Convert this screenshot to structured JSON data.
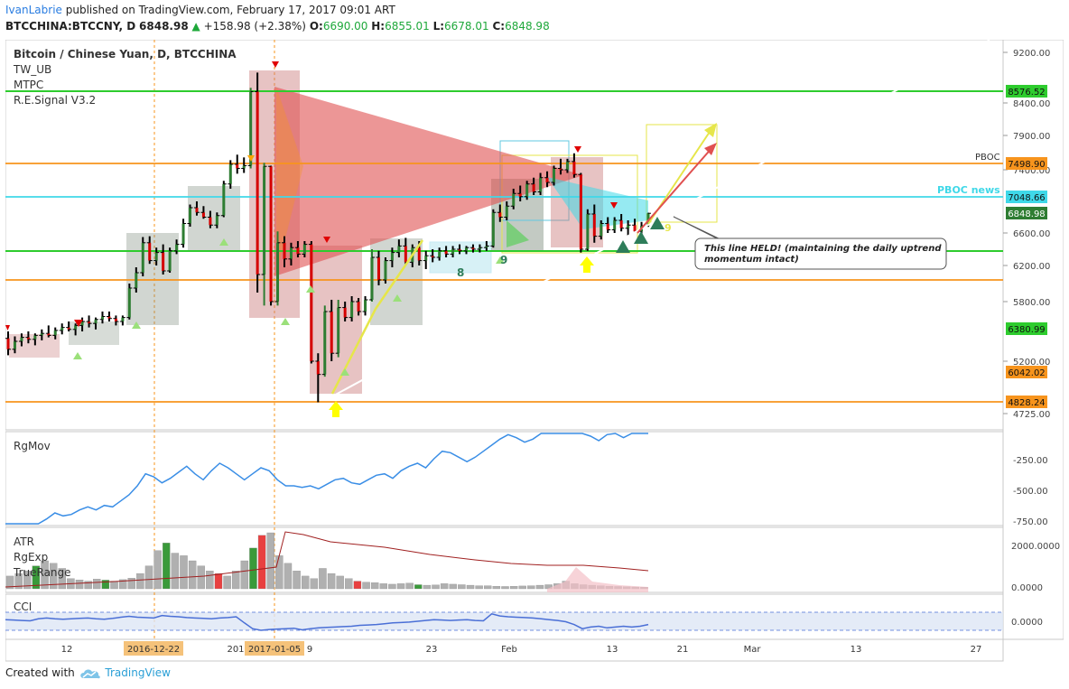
{
  "header": {
    "author": "IvanLabrie",
    "published_text": "published on TradingView.com, February 17, 2017 09:01 ART",
    "symbol": "BTCCHINA:BTCCNY, D",
    "price": "6848.98",
    "change": "+158.98 (+2.38%)",
    "o_label": "O:",
    "o_value": "6690.00",
    "h_label": "H:",
    "h_value": "6855.01",
    "l_label": "L:",
    "l_value": "6678.01",
    "c_label": "C:",
    "c_value": "6848.98"
  },
  "legend": {
    "title": "Bitcoin / Chinese Yuan, D, BTCCHINA",
    "items": [
      "TW_UB",
      "MTPC",
      "R.E.Signal V3.2"
    ]
  },
  "annotation": {
    "line1": "This line HELD! (maintaining the daily uptrend",
    "line2": "momentum intact)"
  },
  "labels": {
    "pboc": "PBOC",
    "pboc_news": "PBOC news",
    "wave8": "8",
    "wave9a": "9",
    "wave9b": "9"
  },
  "colors": {
    "green_line": "#2ecc2e",
    "orange_line": "#f7941d",
    "cyan_line": "#3fd8e8",
    "red_tri": "#e05050",
    "bull": "#2e7d32",
    "bear": "#d50000",
    "rgmov": "#3a8ee6",
    "cci": "#4a6fd6"
  },
  "chart_data": [
    {
      "type": "candlestick",
      "title": "Bitcoin / Chinese Yuan, D, BTCCHINA",
      "y_ticks": [
        "9200.00",
        "8400.00",
        "7900.00",
        "7400.00",
        "6600.00",
        "6200.00",
        "5800.00",
        "5200.00",
        "4725.00"
      ],
      "x_ticks": [
        "12",
        "2016-12-22",
        "201",
        "2017-01-05",
        "9",
        "23",
        "Feb",
        "13",
        "21",
        "Mar",
        "13",
        "27"
      ],
      "price_labels": [
        "8576.52",
        "7498.90",
        "7048.66",
        "6848.98",
        "6380.99",
        "6042.02",
        "4828.24"
      ],
      "horizontal_lines": [
        {
          "price": "8576.52",
          "color": "#2ecc2e"
        },
        {
          "price": "7498.90",
          "color": "#f7941d",
          "label": "PBOC"
        },
        {
          "price": "7048.66",
          "color": "#3fd8e8",
          "label": "PBOC news"
        },
        {
          "price": "6380.99",
          "color": "#2ecc2e"
        },
        {
          "price": "6042.02",
          "color": "#f7941d"
        },
        {
          "price": "4828.24",
          "color": "#f7941d"
        }
      ],
      "candles": [
        {
          "o": 5430,
          "h": 5500,
          "l": 5260,
          "c": 5320
        },
        {
          "o": 5320,
          "h": 5450,
          "l": 5280,
          "c": 5400
        },
        {
          "o": 5400,
          "h": 5480,
          "l": 5350,
          "c": 5440
        },
        {
          "o": 5440,
          "h": 5500,
          "l": 5380,
          "c": 5420
        },
        {
          "o": 5420,
          "h": 5480,
          "l": 5360,
          "c": 5460
        },
        {
          "o": 5460,
          "h": 5520,
          "l": 5410,
          "c": 5480
        },
        {
          "o": 5480,
          "h": 5560,
          "l": 5440,
          "c": 5460
        },
        {
          "o": 5460,
          "h": 5540,
          "l": 5420,
          "c": 5510
        },
        {
          "o": 5510,
          "h": 5580,
          "l": 5470,
          "c": 5540
        },
        {
          "o": 5540,
          "h": 5600,
          "l": 5500,
          "c": 5520
        },
        {
          "o": 5520,
          "h": 5580,
          "l": 5460,
          "c": 5560
        },
        {
          "o": 5560,
          "h": 5640,
          "l": 5500,
          "c": 5600
        },
        {
          "o": 5600,
          "h": 5660,
          "l": 5540,
          "c": 5580
        },
        {
          "o": 5580,
          "h": 5640,
          "l": 5520,
          "c": 5620
        },
        {
          "o": 5620,
          "h": 5700,
          "l": 5580,
          "c": 5650
        },
        {
          "o": 5650,
          "h": 5700,
          "l": 5600,
          "c": 5630
        },
        {
          "o": 5630,
          "h": 5660,
          "l": 5560,
          "c": 5600
        },
        {
          "o": 5600,
          "h": 5660,
          "l": 5560,
          "c": 5640
        },
        {
          "o": 5640,
          "h": 6000,
          "l": 5620,
          "c": 5950
        },
        {
          "o": 5950,
          "h": 6180,
          "l": 5900,
          "c": 6120
        },
        {
          "o": 6120,
          "h": 6550,
          "l": 6080,
          "c": 6480
        },
        {
          "o": 6480,
          "h": 6560,
          "l": 6220,
          "c": 6260
        },
        {
          "o": 6260,
          "h": 6420,
          "l": 6200,
          "c": 6360
        },
        {
          "o": 6360,
          "h": 6460,
          "l": 6100,
          "c": 6140
        },
        {
          "o": 6140,
          "h": 6420,
          "l": 6120,
          "c": 6380
        },
        {
          "o": 6380,
          "h": 6520,
          "l": 6340,
          "c": 6460
        },
        {
          "o": 6460,
          "h": 6780,
          "l": 6420,
          "c": 6720
        },
        {
          "o": 6720,
          "h": 6960,
          "l": 6680,
          "c": 6920
        },
        {
          "o": 6920,
          "h": 7000,
          "l": 6820,
          "c": 6860
        },
        {
          "o": 6860,
          "h": 6940,
          "l": 6780,
          "c": 6800
        },
        {
          "o": 6800,
          "h": 6880,
          "l": 6660,
          "c": 6700
        },
        {
          "o": 6700,
          "h": 6860,
          "l": 6660,
          "c": 6820
        },
        {
          "o": 6820,
          "h": 7260,
          "l": 6800,
          "c": 7220
        },
        {
          "o": 7220,
          "h": 7540,
          "l": 7160,
          "c": 7480
        },
        {
          "o": 7480,
          "h": 7620,
          "l": 7350,
          "c": 7420
        },
        {
          "o": 7420,
          "h": 7580,
          "l": 7360,
          "c": 7460
        },
        {
          "o": 7460,
          "h": 8640,
          "l": 7420,
          "c": 8580
        },
        {
          "o": 8580,
          "h": 8880,
          "l": 5900,
          "c": 6100
        },
        {
          "o": 6100,
          "h": 7500,
          "l": 5760,
          "c": 7450
        },
        {
          "o": 7450,
          "h": 7460,
          "l": 5760,
          "c": 5800
        },
        {
          "o": 5800,
          "h": 6620,
          "l": 5760,
          "c": 6480
        },
        {
          "o": 6480,
          "h": 6560,
          "l": 6180,
          "c": 6280
        },
        {
          "o": 6280,
          "h": 6480,
          "l": 6200,
          "c": 6420
        },
        {
          "o": 6420,
          "h": 6500,
          "l": 6300,
          "c": 6340
        },
        {
          "o": 6340,
          "h": 6500,
          "l": 6300,
          "c": 6460
        },
        {
          "o": 6460,
          "h": 6500,
          "l": 5180,
          "c": 5200
        },
        {
          "o": 5200,
          "h": 5280,
          "l": 4828,
          "c": 5080
        },
        {
          "o": 5080,
          "h": 5760,
          "l": 5060,
          "c": 5700
        },
        {
          "o": 5700,
          "h": 5820,
          "l": 5200,
          "c": 5280
        },
        {
          "o": 5280,
          "h": 5820,
          "l": 5240,
          "c": 5740
        },
        {
          "o": 5740,
          "h": 5800,
          "l": 5600,
          "c": 5640
        },
        {
          "o": 5640,
          "h": 5860,
          "l": 5600,
          "c": 5800
        },
        {
          "o": 5800,
          "h": 5840,
          "l": 5660,
          "c": 5700
        },
        {
          "o": 5700,
          "h": 5860,
          "l": 5660,
          "c": 5820
        },
        {
          "o": 5820,
          "h": 6400,
          "l": 5800,
          "c": 6300
        },
        {
          "o": 6300,
          "h": 6380,
          "l": 5980,
          "c": 6040
        },
        {
          "o": 6040,
          "h": 6300,
          "l": 6000,
          "c": 6260
        },
        {
          "o": 6260,
          "h": 6420,
          "l": 6180,
          "c": 6360
        },
        {
          "o": 6360,
          "h": 6520,
          "l": 6300,
          "c": 6440
        },
        {
          "o": 6440,
          "h": 6540,
          "l": 6200,
          "c": 6240
        },
        {
          "o": 6240,
          "h": 6460,
          "l": 6180,
          "c": 6420
        },
        {
          "o": 6420,
          "h": 6500,
          "l": 6200,
          "c": 6260
        },
        {
          "o": 6260,
          "h": 6380,
          "l": 6160,
          "c": 6320
        },
        {
          "o": 6320,
          "h": 6400,
          "l": 6240,
          "c": 6300
        },
        {
          "o": 6300,
          "h": 6420,
          "l": 6260,
          "c": 6380
        },
        {
          "o": 6380,
          "h": 6440,
          "l": 6300,
          "c": 6340
        },
        {
          "o": 6340,
          "h": 6440,
          "l": 6300,
          "c": 6400
        },
        {
          "o": 6400,
          "h": 6460,
          "l": 6340,
          "c": 6380
        },
        {
          "o": 6380,
          "h": 6440,
          "l": 6340,
          "c": 6420
        },
        {
          "o": 6420,
          "h": 6460,
          "l": 6360,
          "c": 6400
        },
        {
          "o": 6400,
          "h": 6460,
          "l": 6360,
          "c": 6420
        },
        {
          "o": 6420,
          "h": 6500,
          "l": 6380,
          "c": 6440
        },
        {
          "o": 6440,
          "h": 6900,
          "l": 6420,
          "c": 6860
        },
        {
          "o": 6860,
          "h": 6960,
          "l": 6740,
          "c": 6800
        },
        {
          "o": 6800,
          "h": 7000,
          "l": 6760,
          "c": 6940
        },
        {
          "o": 6940,
          "h": 7160,
          "l": 6900,
          "c": 7100
        },
        {
          "o": 7100,
          "h": 7200,
          "l": 7000,
          "c": 7060
        },
        {
          "o": 7060,
          "h": 7260,
          "l": 7020,
          "c": 7220
        },
        {
          "o": 7220,
          "h": 7300,
          "l": 7080,
          "c": 7120
        },
        {
          "o": 7120,
          "h": 7360,
          "l": 7080,
          "c": 7300
        },
        {
          "o": 7300,
          "h": 7380,
          "l": 7180,
          "c": 7240
        },
        {
          "o": 7240,
          "h": 7460,
          "l": 7200,
          "c": 7420
        },
        {
          "o": 7420,
          "h": 7560,
          "l": 7340,
          "c": 7400
        },
        {
          "o": 7400,
          "h": 7560,
          "l": 7360,
          "c": 7520
        },
        {
          "o": 7520,
          "h": 7640,
          "l": 7300,
          "c": 7340
        },
        {
          "o": 7340,
          "h": 7360,
          "l": 6360,
          "c": 6400
        },
        {
          "o": 6400,
          "h": 6900,
          "l": 6380,
          "c": 6840
        },
        {
          "o": 6840,
          "h": 6960,
          "l": 6480,
          "c": 6560
        },
        {
          "o": 6560,
          "h": 6760,
          "l": 6520,
          "c": 6720
        },
        {
          "o": 6720,
          "h": 6800,
          "l": 6600,
          "c": 6640
        },
        {
          "o": 6640,
          "h": 6800,
          "l": 6600,
          "c": 6760
        },
        {
          "o": 6760,
          "h": 6840,
          "l": 6620,
          "c": 6660
        },
        {
          "o": 6660,
          "h": 6760,
          "l": 6560,
          "c": 6700
        },
        {
          "o": 6700,
          "h": 6780,
          "l": 6600,
          "c": 6620
        },
        {
          "o": 6620,
          "h": 6740,
          "l": 6560,
          "c": 6690
        },
        {
          "o": 6690,
          "h": 6855,
          "l": 6678,
          "c": 6849
        }
      ]
    },
    {
      "type": "line",
      "title": "RgMov",
      "y_ticks": [
        "-250.00",
        "-500.00",
        "-750.00"
      ],
      "values": [
        -780,
        -760,
        -720,
        -680,
        -640,
        -600,
        -560,
        -580,
        -570,
        -540,
        -520,
        -540,
        -510,
        -520,
        -480,
        -440,
        -380,
        -300,
        -320,
        -360,
        -330,
        -290,
        -250,
        -300,
        -340,
        -280,
        -230,
        -260,
        -300,
        -340,
        -300,
        -260,
        -280,
        -340,
        -380,
        -380,
        -390,
        -380,
        -400,
        -370,
        -340,
        -330,
        -360,
        -370,
        -340,
        -310,
        -300,
        -330,
        -280,
        -250,
        -230,
        -260,
        -200,
        -150,
        -160,
        -190,
        -220,
        -190,
        -150,
        -110,
        -70,
        -40,
        -60,
        -90,
        -70,
        -30,
        10,
        60,
        20,
        -10,
        0,
        -50,
        -80,
        -40,
        -30,
        -60,
        -20,
        -30,
        0
      ]
    },
    {
      "type": "bar",
      "title": "ATR",
      "subtitles": [
        "RgExp",
        "TrueRange"
      ],
      "y_ticks": [
        "2000.0000",
        "0.0000"
      ],
      "values": [
        500,
        600,
        700,
        900,
        1100,
        1000,
        800,
        400,
        350,
        300,
        380,
        340,
        300,
        360,
        420,
        600,
        900,
        1500,
        1800,
        1400,
        1300,
        1100,
        900,
        700,
        600,
        500,
        700,
        1100,
        1600,
        2100,
        2200,
        1300,
        1000,
        700,
        500,
        400,
        800,
        600,
        500,
        400,
        300,
        260,
        240,
        200,
        180,
        200,
        220,
        160,
        140,
        150,
        200,
        180,
        160,
        140,
        120,
        120,
        100,
        90,
        100,
        110,
        120,
        140,
        160,
        200,
        300,
        200,
        160,
        140,
        120,
        100,
        90,
        80,
        70,
        60
      ],
      "up_bars": [
        3,
        11,
        18,
        28,
        47
      ],
      "down_bars": [
        24,
        29,
        40
      ]
    },
    {
      "type": "line",
      "title": "CCI",
      "y_ticks": [
        "0.0000"
      ],
      "values": [
        40,
        30,
        20,
        10,
        60,
        80,
        60,
        50,
        60,
        70,
        80,
        60,
        50,
        70,
        100,
        120,
        100,
        90,
        80,
        140,
        120,
        110,
        90,
        80,
        70,
        60,
        80,
        90,
        110,
        -40,
        -180,
        -220,
        -200,
        -190,
        -180,
        -170,
        -210,
        -180,
        -160,
        -150,
        -140,
        -130,
        -120,
        -100,
        -90,
        -80,
        -60,
        -40,
        -30,
        -20,
        0,
        20,
        40,
        30,
        20,
        30,
        40,
        20,
        10,
        180,
        130,
        110,
        100,
        90,
        80,
        60,
        40,
        20,
        -10,
        -80,
        -180,
        -140,
        -120,
        -160,
        -140,
        -120,
        -140,
        -120,
        -80
      ]
    }
  ],
  "footer": {
    "created_with": "Created with",
    "brand": "TradingView"
  }
}
